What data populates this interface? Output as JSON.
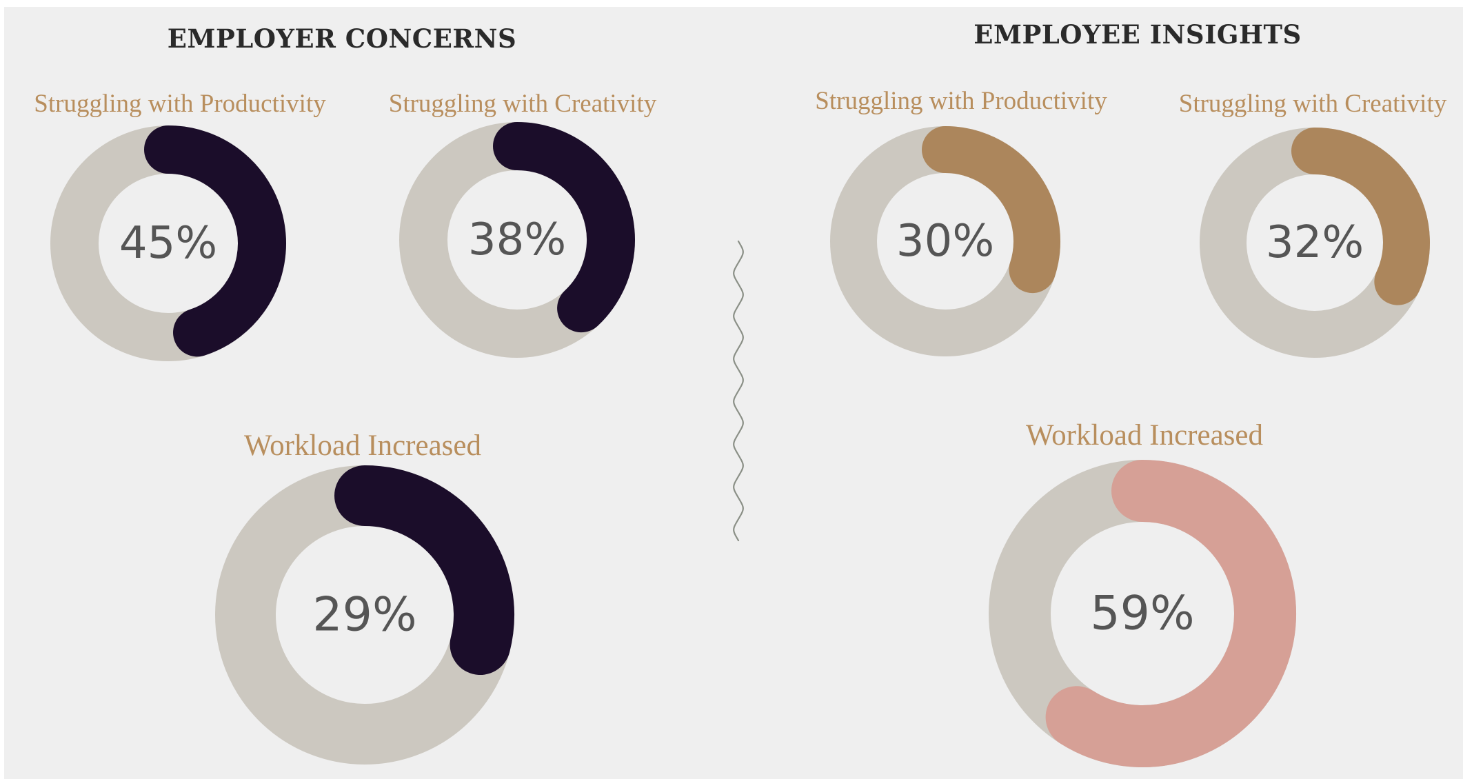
{
  "chart_data": [
    {
      "type": "pie",
      "title": "EMPLOYER CONCERNS",
      "gauges": [
        {
          "label": "Struggling with Productivity",
          "value": 45,
          "display": "45%",
          "color": "#1b0d2a",
          "track_color": "#ccc8c0"
        },
        {
          "label": "Struggling with Creativity",
          "value": 38,
          "display": "38%",
          "color": "#1b0d2a",
          "track_color": "#ccc8c0"
        },
        {
          "label": "Workload Increased",
          "value": 29,
          "display": "29%",
          "color": "#1b0d2a",
          "track_color": "#ccc8c0"
        }
      ]
    },
    {
      "type": "pie",
      "title": "EMPLOYEE INSIGHTS",
      "gauges": [
        {
          "label": "Struggling with Productivity",
          "value": 30,
          "display": "30%",
          "color": "#ac865c",
          "track_color": "#ccc8c0"
        },
        {
          "label": "Struggling with Creativity",
          "value": 32,
          "display": "32%",
          "color": "#ac865c",
          "track_color": "#ccc8c0"
        },
        {
          "label": "Workload Increased",
          "value": 59,
          "display": "59%",
          "color": "#d6a096",
          "track_color": "#ccc8c0"
        }
      ]
    }
  ],
  "colors": {
    "background": "#efefef",
    "title": "#2a2a2a",
    "label": "#b88e5d",
    "value_text": "#555555",
    "divider": "#8a8f86"
  }
}
